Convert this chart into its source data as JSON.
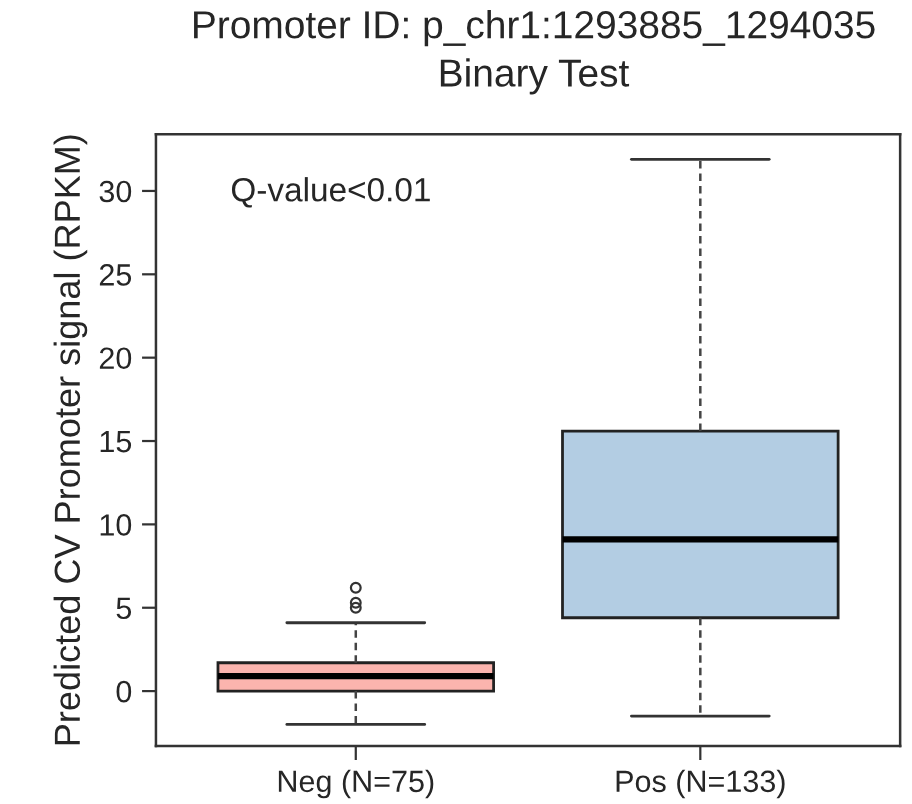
{
  "chart_data": {
    "type": "box",
    "title": "Promoter ID: p_chr1:1293885_1294035",
    "subtitle": "Binary Test",
    "ylabel": "Predicted CV Promoter signal (RPKM)",
    "categories": [
      "Neg (N=75)",
      "Pos (N=133)"
    ],
    "boxes": [
      {
        "low": -2.0,
        "q1": 0.0,
        "median": 0.9,
        "q3": 1.7,
        "high": 4.1,
        "outliers": [
          5.0,
          5.3,
          6.2
        ]
      },
      {
        "low": -1.5,
        "q1": 4.4,
        "median": 9.1,
        "q3": 15.6,
        "high": 31.9
      }
    ],
    "colors": [
      "#fbb4ae",
      "#b3cde3"
    ],
    "ylim": [
      -3.3,
      33.4
    ],
    "yticks": [
      0,
      5,
      10,
      15,
      20,
      25,
      30
    ],
    "annotations": [
      "Q-value<0.01"
    ],
    "grid": false,
    "legend": false
  }
}
